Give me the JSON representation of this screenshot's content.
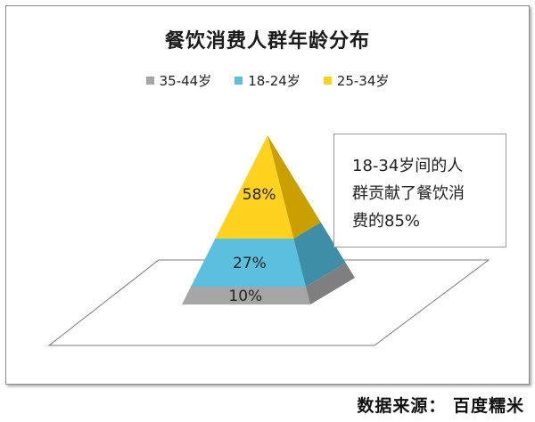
{
  "chart_data": {
    "type": "pyramid",
    "title": "餐饮消费人群年龄分布",
    "series": [
      {
        "name": "35-44岁",
        "value": 10,
        "label": "10%",
        "color": "#a6a6a6",
        "shade": "#7f7f7f"
      },
      {
        "name": "18-24岁",
        "value": 27,
        "label": "27%",
        "color": "#5bc0de",
        "shade": "#3d8ea6"
      },
      {
        "name": "25-34岁",
        "value": 58,
        "label": "58%",
        "color": "#ffd21f",
        "shade": "#c9a000"
      }
    ],
    "legend_position": "top",
    "annotation": [
      "18-34岁间的人",
      "群贡献了餐饮消",
      "费的85%"
    ]
  },
  "source": "数据来源：  百度糯米"
}
